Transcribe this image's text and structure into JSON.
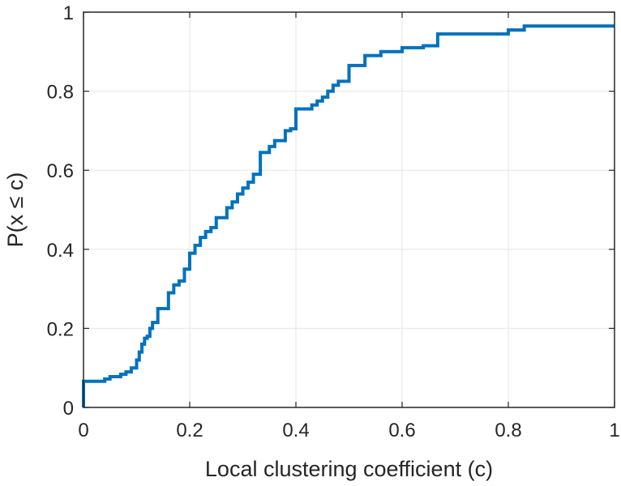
{
  "chart_data": {
    "type": "line",
    "subtype": "empirical-cdf-stairs",
    "title": "",
    "xlabel": "Local clustering coefficient (c)",
    "ylabel": "P(x ≤ c)",
    "xlim": [
      0,
      1
    ],
    "ylim": [
      0,
      1
    ],
    "xticks": [
      0,
      0.2,
      0.4,
      0.6,
      0.8,
      1
    ],
    "xtick_labels": [
      "0",
      "0.2",
      "0.4",
      "0.6",
      "0.8",
      "1"
    ],
    "yticks": [
      0,
      0.2,
      0.4,
      0.6,
      0.8,
      1
    ],
    "ytick_labels": [
      "0",
      "0.2",
      "0.4",
      "0.6",
      "0.8",
      "1"
    ],
    "grid": true,
    "line_color": "#0072bd",
    "series": [
      {
        "x": [
          0,
          0,
          0.04,
          0.04,
          0.05,
          0.05,
          0.07,
          0.07,
          0.08,
          0.08,
          0.09,
          0.09,
          0.1,
          0.1,
          0.105,
          0.105,
          0.11,
          0.11,
          0.115,
          0.115,
          0.12,
          0.12,
          0.125,
          0.125,
          0.13,
          0.13,
          0.14,
          0.14,
          0.145,
          0.145,
          0.16,
          0.16,
          0.17,
          0.17,
          0.18,
          0.18,
          0.19,
          0.19,
          0.2,
          0.2,
          0.21,
          0.21,
          0.22,
          0.22,
          0.23,
          0.23,
          0.24,
          0.24,
          0.25,
          0.25,
          0.27,
          0.27,
          0.28,
          0.28,
          0.29,
          0.29,
          0.3,
          0.3,
          0.31,
          0.31,
          0.32,
          0.32,
          0.333,
          0.333,
          0.35,
          0.35,
          0.36,
          0.36,
          0.38,
          0.38,
          0.39,
          0.39,
          0.4,
          0.4,
          0.43,
          0.43,
          0.44,
          0.44,
          0.45,
          0.45,
          0.46,
          0.46,
          0.47,
          0.47,
          0.48,
          0.48,
          0.5,
          0.5,
          0.53,
          0.53,
          0.56,
          0.56,
          0.6,
          0.6,
          0.64,
          0.64,
          0.667,
          0.667,
          0.8,
          0.8,
          0.83,
          0.83,
          1
        ],
        "y": [
          0,
          0.066,
          0.066,
          0.072,
          0.072,
          0.078,
          0.078,
          0.084,
          0.084,
          0.09,
          0.09,
          0.1,
          0.1,
          0.12,
          0.12,
          0.14,
          0.14,
          0.16,
          0.16,
          0.175,
          0.175,
          0.18,
          0.18,
          0.2,
          0.2,
          0.215,
          0.215,
          0.25,
          0.25,
          0.25,
          0.25,
          0.29,
          0.29,
          0.31,
          0.31,
          0.32,
          0.32,
          0.35,
          0.35,
          0.39,
          0.39,
          0.41,
          0.41,
          0.43,
          0.43,
          0.445,
          0.445,
          0.455,
          0.455,
          0.48,
          0.48,
          0.505,
          0.505,
          0.52,
          0.52,
          0.54,
          0.54,
          0.555,
          0.555,
          0.57,
          0.57,
          0.59,
          0.59,
          0.645,
          0.645,
          0.66,
          0.66,
          0.675,
          0.675,
          0.7,
          0.7,
          0.705,
          0.705,
          0.755,
          0.755,
          0.765,
          0.765,
          0.775,
          0.775,
          0.785,
          0.785,
          0.8,
          0.8,
          0.815,
          0.815,
          0.825,
          0.825,
          0.865,
          0.865,
          0.89,
          0.89,
          0.9,
          0.9,
          0.91,
          0.91,
          0.915,
          0.915,
          0.945,
          0.945,
          0.955,
          0.955,
          0.965,
          0.965
        ]
      }
    ]
  }
}
